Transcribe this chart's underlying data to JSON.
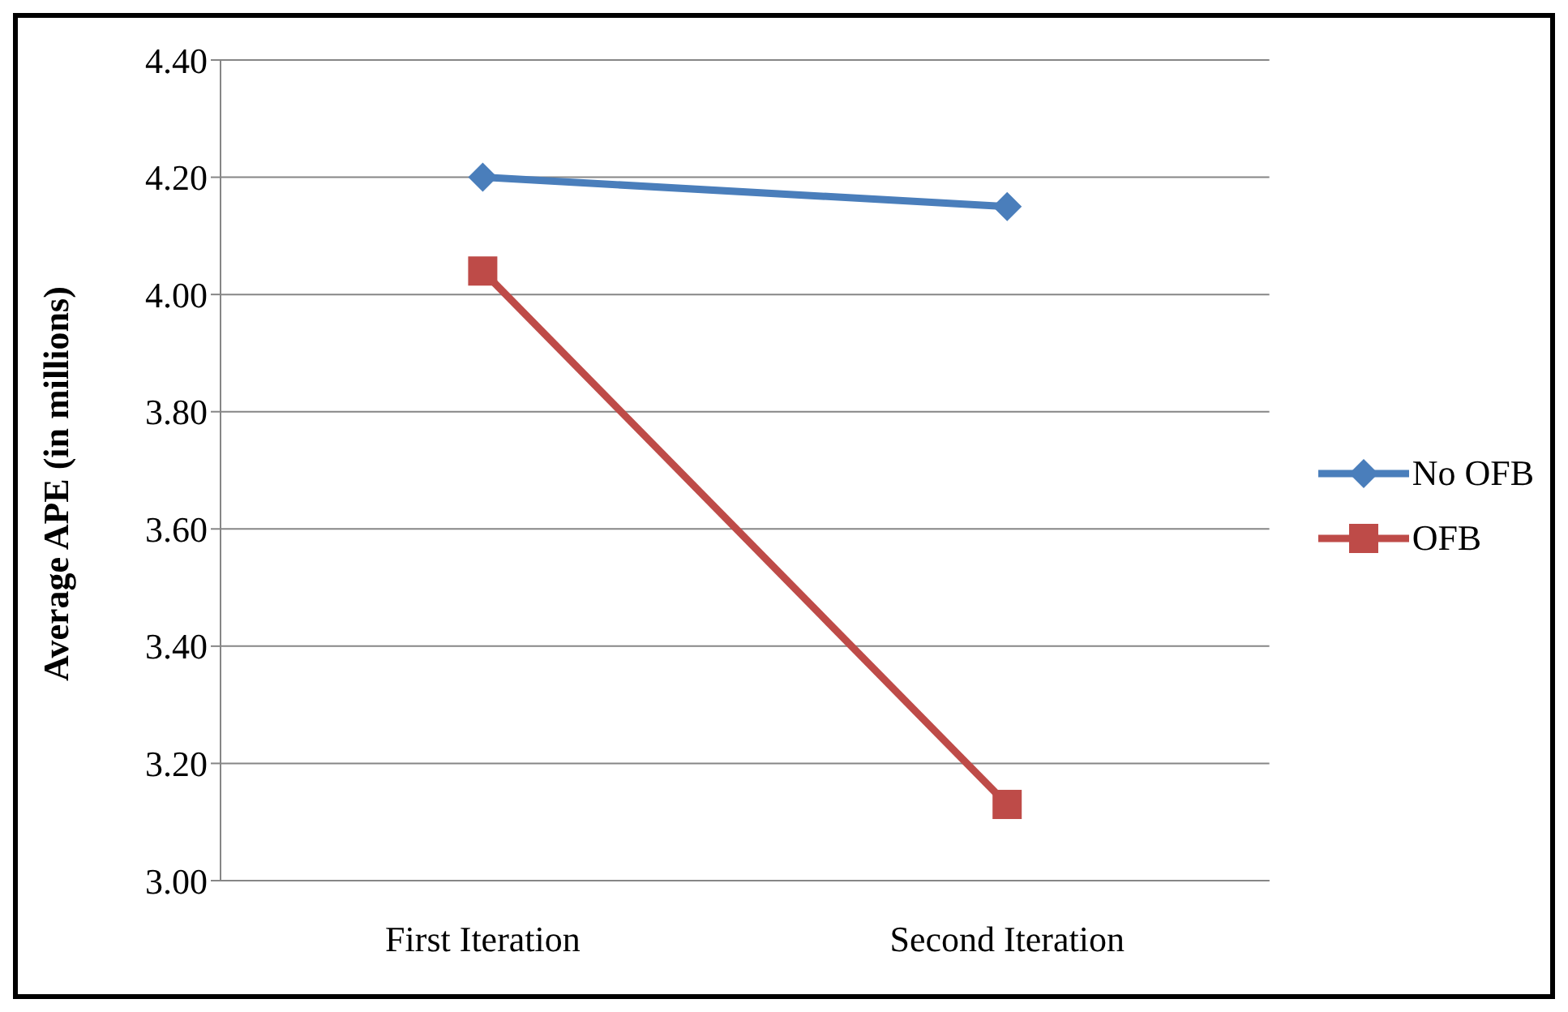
{
  "chart_data": {
    "type": "line",
    "ylabel": "Average APE (in millions)",
    "categories": [
      "First Iteration",
      "Second Iteration"
    ],
    "series": [
      {
        "name": "No OFB",
        "color": "#4a7ebb",
        "values": [
          4.2,
          4.15
        ],
        "marker": "diamond"
      },
      {
        "name": "OFB",
        "color": "#be4b48",
        "values": [
          4.04,
          3.13
        ],
        "marker": "square"
      }
    ],
    "ylim": [
      3.0,
      4.4
    ],
    "yticks": [
      {
        "value": 3.0,
        "label": "3.00"
      },
      {
        "value": 3.2,
        "label": "3.20"
      },
      {
        "value": 3.4,
        "label": "3.40"
      },
      {
        "value": 3.6,
        "label": "3.60"
      },
      {
        "value": 3.8,
        "label": "3.80"
      },
      {
        "value": 4.0,
        "label": "4.00"
      },
      {
        "value": 4.2,
        "label": "4.20"
      },
      {
        "value": 4.4,
        "label": "4.40"
      }
    ],
    "grid": "y",
    "legend": "right",
    "line_style": "solid"
  }
}
